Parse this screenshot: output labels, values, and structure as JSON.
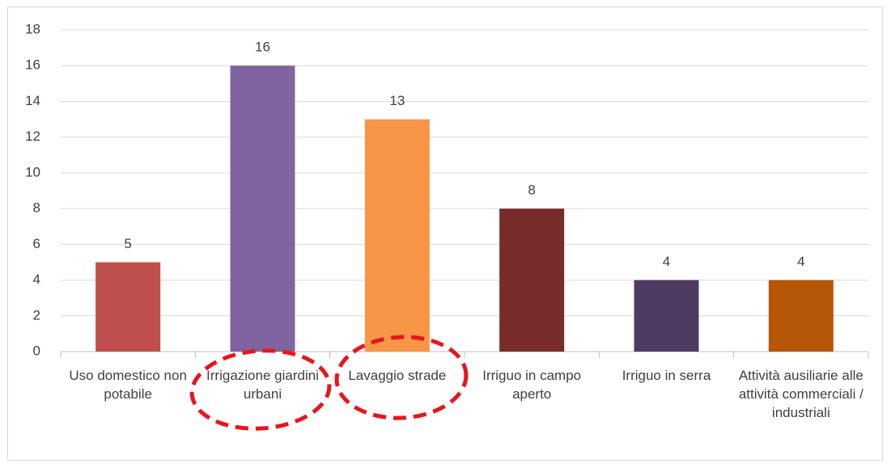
{
  "chart_data": {
    "type": "bar",
    "categories": [
      "Uso domestico non potabile",
      "Irrigazione giardini urbani",
      "Lavaggio strade",
      "Irriguo in campo aperto",
      "Irriguo in serra",
      "Attività ausiliarie alle attività commerciali / industriali"
    ],
    "values": [
      5,
      16,
      13,
      8,
      4,
      4
    ],
    "colors": [
      "#c0504d",
      "#8064a2",
      "#f79646",
      "#772c2a",
      "#4f3b62",
      "#b65708"
    ],
    "ylim": [
      0,
      18
    ],
    "yticks": [
      0,
      2,
      4,
      6,
      8,
      10,
      12,
      14,
      16,
      18
    ],
    "grid": true
  }
}
